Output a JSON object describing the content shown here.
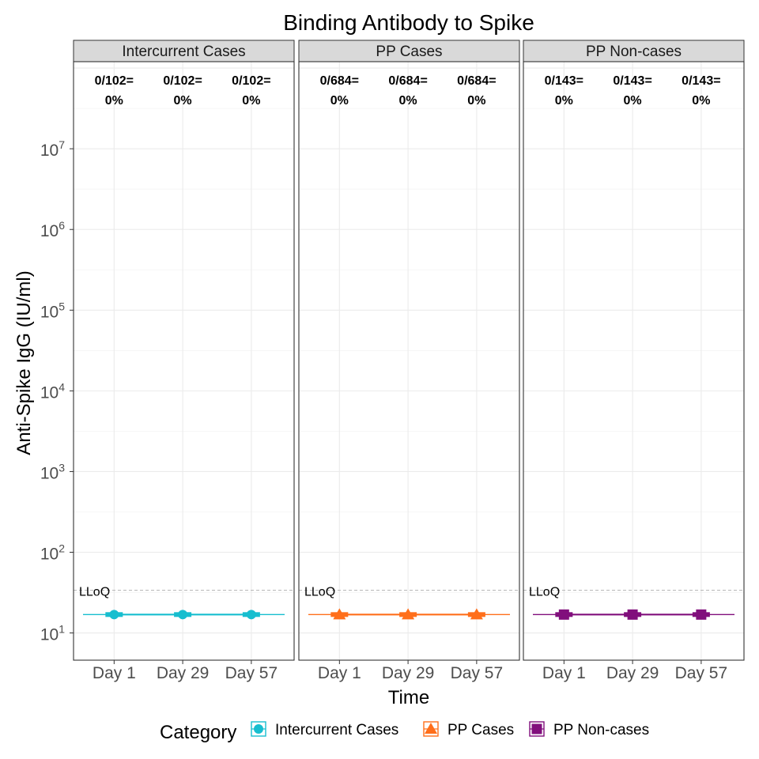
{
  "chart_data": {
    "type": "line",
    "title": "Binding Antibody to Spike",
    "xlabel": "Time",
    "ylabel": "Anti-Spike IgG (IU/ml)",
    "y_scale": "log10",
    "ylim": [
      4.6,
      120000000
    ],
    "y_ticks": [
      {
        "base": "10",
        "exp": "1",
        "value": 10
      },
      {
        "base": "10",
        "exp": "2",
        "value": 100
      },
      {
        "base": "10",
        "exp": "3",
        "value": 1000
      },
      {
        "base": "10",
        "exp": "4",
        "value": 10000
      },
      {
        "base": "10",
        "exp": "5",
        "value": 100000
      },
      {
        "base": "10",
        "exp": "6",
        "value": 1000000
      },
      {
        "base": "10",
        "exp": "7",
        "value": 10000000
      }
    ],
    "categories": [
      "Day 1",
      "Day 29",
      "Day 57"
    ],
    "lloq": {
      "label": "LLoQ",
      "value": 33.8
    },
    "grid": true,
    "legend": {
      "title": "Category",
      "position": "bottom"
    },
    "panels": [
      {
        "strip": "Intercurrent Cases",
        "series": "Intercurrent Cases",
        "color": "#17becf",
        "shape": "circle",
        "values": [
          16.9,
          16.9,
          16.9
        ],
        "count_lines": [
          [
            "0/102=",
            "0%"
          ],
          [
            "0/102=",
            "0%"
          ],
          [
            "0/102=",
            "0%"
          ]
        ]
      },
      {
        "strip": "PP Cases",
        "series": "PP Cases",
        "color": "#ff6f1b",
        "shape": "triangle",
        "values": [
          16.9,
          16.9,
          16.9
        ],
        "count_lines": [
          [
            "0/684=",
            "0%"
          ],
          [
            "0/684=",
            "0%"
          ],
          [
            "0/684=",
            "0%"
          ]
        ]
      },
      {
        "strip": "PP Non-cases",
        "series": "PP Non-cases",
        "color": "#810f7c",
        "shape": "square",
        "values": [
          16.9,
          16.9,
          16.9
        ],
        "count_lines": [
          [
            "0/143=",
            "0%"
          ],
          [
            "0/143=",
            "0%"
          ],
          [
            "0/143=",
            "0%"
          ]
        ]
      }
    ]
  }
}
